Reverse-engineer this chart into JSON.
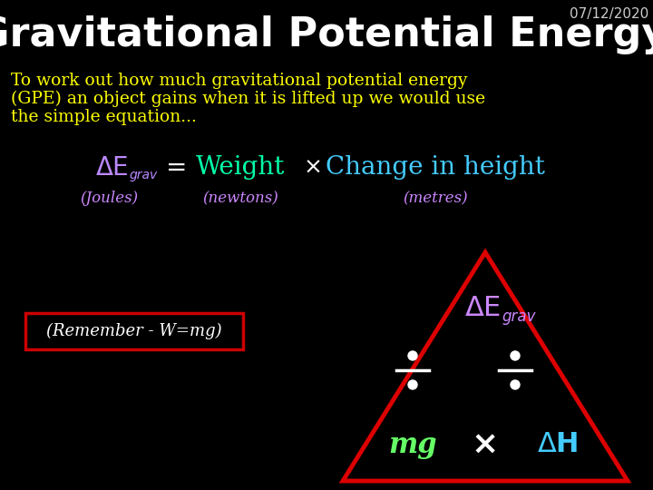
{
  "bg_color": "#000000",
  "title": "Gravitational Potential Energy",
  "title_color": "#ffffff",
  "title_fontsize": 32,
  "date": "07/12/2020",
  "date_color": "#cccccc",
  "date_fontsize": 11,
  "body_text_line1": "To work out how much gravitational potential energy",
  "body_text_line2": "(GPE) an object gains when it is lifted up we would use",
  "body_text_line3": "the simple equation...",
  "body_color": "#ffff00",
  "body_fontsize": 13.5,
  "eq_color": "#bb88ff",
  "eq_weight_color": "#00ffaa",
  "eq_times_color": "#ffffff",
  "eq_change_color": "#44ccff",
  "unit_color": "#cc88ff",
  "unit_fontsize": 12,
  "remember_text": "(Remember - W=mg)",
  "remember_color": "#ffffff",
  "remember_box_color": "#cc0000",
  "triangle_color": "#dd0000",
  "tri_egrav_color": "#cc88ff",
  "tri_mg_color": "#66ff66",
  "tri_dH_color": "#44ccff",
  "tri_times_color": "#ffffff",
  "tri_div_color": "#ffffff"
}
